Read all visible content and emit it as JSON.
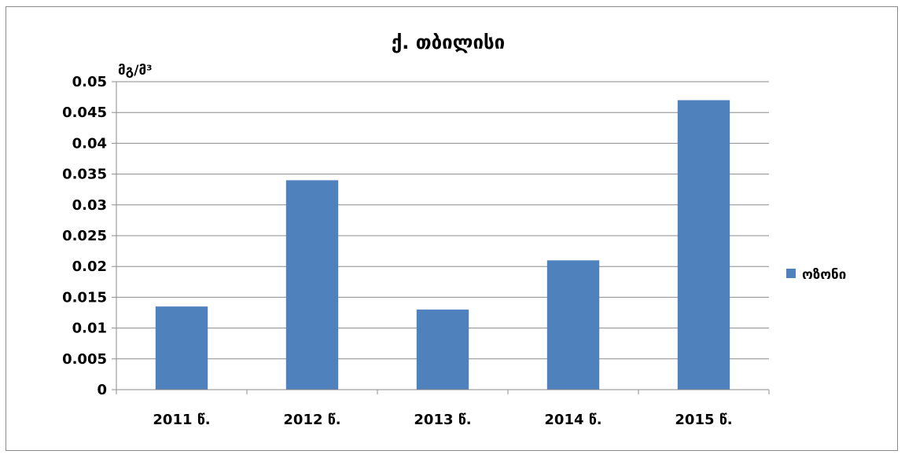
{
  "chart_data": {
    "type": "bar",
    "title": "ქ. თბილისი",
    "ylabel": "მგ/მ³",
    "xlabel": "",
    "categories": [
      "2011 წ.",
      "2012 წ.",
      "2013 წ.",
      "2014 წ.",
      "2015 წ."
    ],
    "series": [
      {
        "name": "ოზონი",
        "values": [
          0.0135,
          0.034,
          0.013,
          0.021,
          0.047
        ],
        "color": "#4F81BD"
      }
    ],
    "ylim": [
      0,
      0.05
    ],
    "yticks": [
      "0",
      "0.005",
      "0.01",
      "0.015",
      "0.02",
      "0.025",
      "0.03",
      "0.035",
      "0.04",
      "0.045",
      "0.05"
    ],
    "grid": true,
    "legend": "right"
  }
}
